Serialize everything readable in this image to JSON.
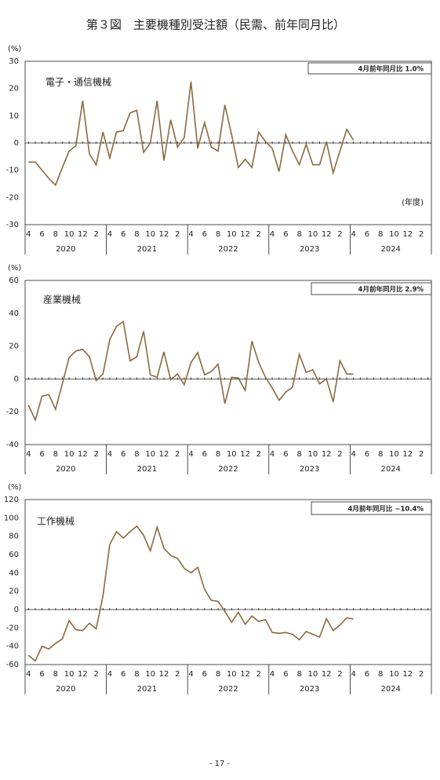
{
  "page": {
    "title": "第３図　主要機種別受注額（民需、前年同月比）",
    "page_number": "- 17 -"
  },
  "chart_data": [
    {
      "type": "line",
      "ylabel": "(%)",
      "series_label": "電子・通信機械",
      "annotation": "4月前年同月比  1.0%",
      "unit_note": "(年度)",
      "ylim": [
        -30,
        30
      ],
      "yticks": [
        -30,
        -20,
        -10,
        0,
        10,
        20,
        30
      ],
      "grid": false,
      "categories": [
        "4",
        null,
        "6",
        null,
        "8",
        null,
        "10",
        null,
        "12",
        null,
        "2",
        null,
        "4",
        null,
        "6",
        null,
        "8",
        null,
        "10",
        null,
        "12",
        null,
        "2",
        null,
        "4",
        null,
        "6",
        null,
        "8",
        null,
        "10",
        null,
        "12",
        null,
        "2",
        null,
        "4",
        null,
        "6",
        null,
        "8",
        null,
        "10",
        null,
        "12",
        null,
        "2",
        null,
        "4",
        null,
        "6",
        null,
        "8",
        null,
        "10",
        null,
        "12",
        null,
        "2",
        null
      ],
      "groups": [
        "2020",
        "2021",
        "2022",
        "2023",
        "2024"
      ],
      "series": [
        {
          "name": "電子・通信機械",
          "color": "#8b6a3e",
          "values": [
            -7,
            -7,
            -10,
            -13,
            -15.5,
            -9,
            -3,
            -1,
            15.5,
            -4,
            -8,
            4,
            -5.5,
            4,
            4.5,
            11,
            12,
            -3.5,
            0,
            15.5,
            -6.5,
            8.5,
            -1.5,
            2,
            22.5,
            -2,
            7.5,
            -1.5,
            -3,
            14,
            3,
            -9,
            -6,
            -9,
            4,
            0.5,
            -2,
            -10.5,
            3,
            -3,
            -8,
            -0.5,
            -8,
            -8,
            0.5,
            -11,
            -3,
            5,
            1.0,
            null,
            null,
            null,
            null,
            null,
            null,
            null,
            null,
            null,
            null,
            null
          ]
        }
      ]
    },
    {
      "type": "line",
      "ylabel": "(%)",
      "series_label": "産業機械",
      "annotation": "4月前年同月比  2.9%",
      "ylim": [
        -40,
        60
      ],
      "yticks": [
        -40,
        -20,
        0,
        20,
        40,
        60
      ],
      "grid": false,
      "categories": [
        "4",
        null,
        "6",
        null,
        "8",
        null,
        "10",
        null,
        "12",
        null,
        "2",
        null,
        "4",
        null,
        "6",
        null,
        "8",
        null,
        "10",
        null,
        "12",
        null,
        "2",
        null,
        "4",
        null,
        "6",
        null,
        "8",
        null,
        "10",
        null,
        "12",
        null,
        "2",
        null,
        "4",
        null,
        "6",
        null,
        "8",
        null,
        "10",
        null,
        "12",
        null,
        "2",
        null,
        "4",
        null,
        "6",
        null,
        "8",
        null,
        "10",
        null,
        "12",
        null,
        "2",
        null
      ],
      "groups": [
        "2020",
        "2021",
        "2022",
        "2023",
        "2024"
      ],
      "series": [
        {
          "name": "産業機械",
          "color": "#8b6a3e",
          "values": [
            -16,
            -25,
            -10.5,
            -9.5,
            -18.5,
            -3,
            13,
            17,
            18,
            13.5,
            -1,
            3,
            24,
            32,
            35,
            11,
            13.5,
            29,
            2.5,
            1,
            16.5,
            -0.5,
            3,
            -3.5,
            10,
            16,
            2.5,
            4.5,
            9,
            -15,
            1,
            0.5,
            -7,
            23,
            10,
            1,
            -5.5,
            -13,
            -8,
            -5,
            15,
            4,
            5.5,
            -3,
            0,
            -14,
            11,
            3,
            2.9,
            null,
            null,
            null,
            null,
            null,
            null,
            null,
            null,
            null,
            null,
            null
          ]
        }
      ]
    },
    {
      "type": "line",
      "ylabel": "(%)",
      "series_label": "工作機械",
      "annotation": "4月前年同月比  −10.4%",
      "ylim": [
        -60,
        120
      ],
      "yticks": [
        -60,
        -40,
        -20,
        0,
        20,
        40,
        60,
        80,
        100,
        120
      ],
      "grid": false,
      "categories": [
        "4",
        null,
        "6",
        null,
        "8",
        null,
        "10",
        null,
        "12",
        null,
        "2",
        null,
        "4",
        null,
        "6",
        null,
        "8",
        null,
        "10",
        null,
        "12",
        null,
        "2",
        null,
        "4",
        null,
        "6",
        null,
        "8",
        null,
        "10",
        null,
        "12",
        null,
        "2",
        null,
        "4",
        null,
        "6",
        null,
        "8",
        null,
        "10",
        null,
        "12",
        null,
        "2",
        null,
        "4",
        null,
        "6",
        null,
        "8",
        null,
        "10",
        null,
        "12",
        null,
        "2",
        null
      ],
      "groups": [
        "2020",
        "2021",
        "2022",
        "2023",
        "2024"
      ],
      "series": [
        {
          "name": "工作機械",
          "color": "#8b6a3e",
          "values": [
            -50,
            -56,
            -40,
            -43,
            -37,
            -32,
            -12,
            -22,
            -23,
            -15,
            -21,
            15,
            71,
            85,
            78,
            85,
            91,
            81,
            64,
            90,
            67,
            59,
            56,
            45,
            40,
            46,
            22,
            10,
            9,
            -2,
            -14,
            -3,
            -16,
            -7,
            -13,
            -11,
            -25,
            -26,
            -25,
            -27,
            -33,
            -24,
            -27,
            -30,
            -10,
            -23,
            -17,
            -9,
            -10.4,
            null,
            null,
            null,
            null,
            null,
            null,
            null,
            null,
            null,
            null,
            null
          ]
        }
      ]
    }
  ]
}
